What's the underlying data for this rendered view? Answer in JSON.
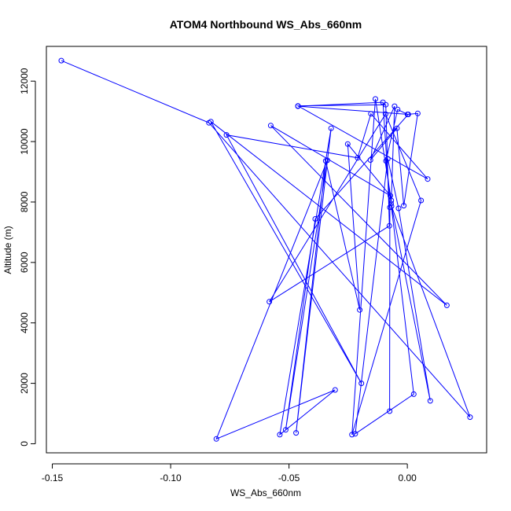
{
  "chart_data": {
    "type": "line",
    "title": "ATOM4 Northbound WS_Abs_660nm",
    "xlabel": "WS_Abs_660nm",
    "ylabel": "Altitude (m)",
    "xlim": [
      -0.1525,
      0.0335
    ],
    "ylim": [
      -300,
      13150
    ],
    "x_ticks": [
      -0.15,
      -0.1,
      -0.05,
      0.0
    ],
    "x_tick_labels": [
      "-0.15",
      "-0.10",
      "-0.05",
      "0.00"
    ],
    "y_ticks": [
      0,
      2000,
      4000,
      6000,
      8000,
      10000,
      12000
    ],
    "y_tick_labels": [
      "0",
      "2000",
      "4000",
      "6000",
      "8000",
      "10000",
      "12000"
    ],
    "grid": false,
    "line_color": "#0000ff",
    "marker": "open-circle",
    "series": [
      {
        "points": [
          [
            -0.0075,
            1080
          ],
          [
            -0.0074,
            7820
          ],
          [
            -0.0103,
            11300
          ],
          [
            -0.0462,
            11170
          ],
          [
            0.0004,
            10900
          ],
          [
            -0.0389,
            7440
          ],
          [
            -0.0514,
            460
          ],
          [
            -0.0338,
            9380
          ],
          [
            -0.0807,
            160
          ],
          [
            -0.0305,
            1780
          ],
          [
            -0.0539,
            300
          ],
          [
            -0.0322,
            10440
          ],
          [
            -0.047,
            360
          ],
          [
            -0.0345,
            9360
          ],
          [
            -0.0201,
            4430
          ],
          [
            -0.0252,
            9920
          ],
          [
            -0.0072,
            8210
          ],
          [
            -0.0577,
            10530
          ],
          [
            0.0167,
            4580
          ],
          [
            -0.083,
            10660
          ],
          [
            -0.0194,
            2000
          ],
          [
            -0.0764,
            10220
          ],
          [
            -0.021,
            9460
          ],
          [
            -0.0154,
            10920
          ],
          [
            0.0086,
            8760
          ],
          [
            -0.0462,
            11180
          ],
          [
            -0.0091,
            11220
          ],
          [
            -0.0076,
            7210
          ],
          [
            -0.0583,
            4700
          ],
          [
            -0.0092,
            10910
          ],
          [
            0.0058,
            8050
          ],
          [
            -0.0234,
            300
          ],
          [
            -0.0135,
            11410
          ],
          [
            -0.0068,
            8050
          ],
          [
            -0.0054,
            11170
          ],
          [
            -0.0156,
            9390
          ],
          [
            -0.0044,
            10440
          ],
          [
            -0.0015,
            7880
          ],
          [
            0.0044,
            10930
          ],
          [
            0.0001,
            10900
          ],
          [
            -0.0041,
            11060
          ],
          [
            -0.009,
            9360
          ],
          [
            -0.0069,
            7950
          ],
          [
            0.0027,
            1640
          ],
          [
            -0.022,
            330
          ],
          [
            -0.0083,
            9430
          ],
          [
            -0.0037,
            7790
          ],
          [
            0.0097,
            1420
          ],
          [
            -0.0067,
            7860
          ],
          [
            0.0265,
            880
          ],
          [
            -0.0838,
            10620
          ],
          [
            -0.1462,
            12680
          ]
        ]
      }
    ]
  }
}
